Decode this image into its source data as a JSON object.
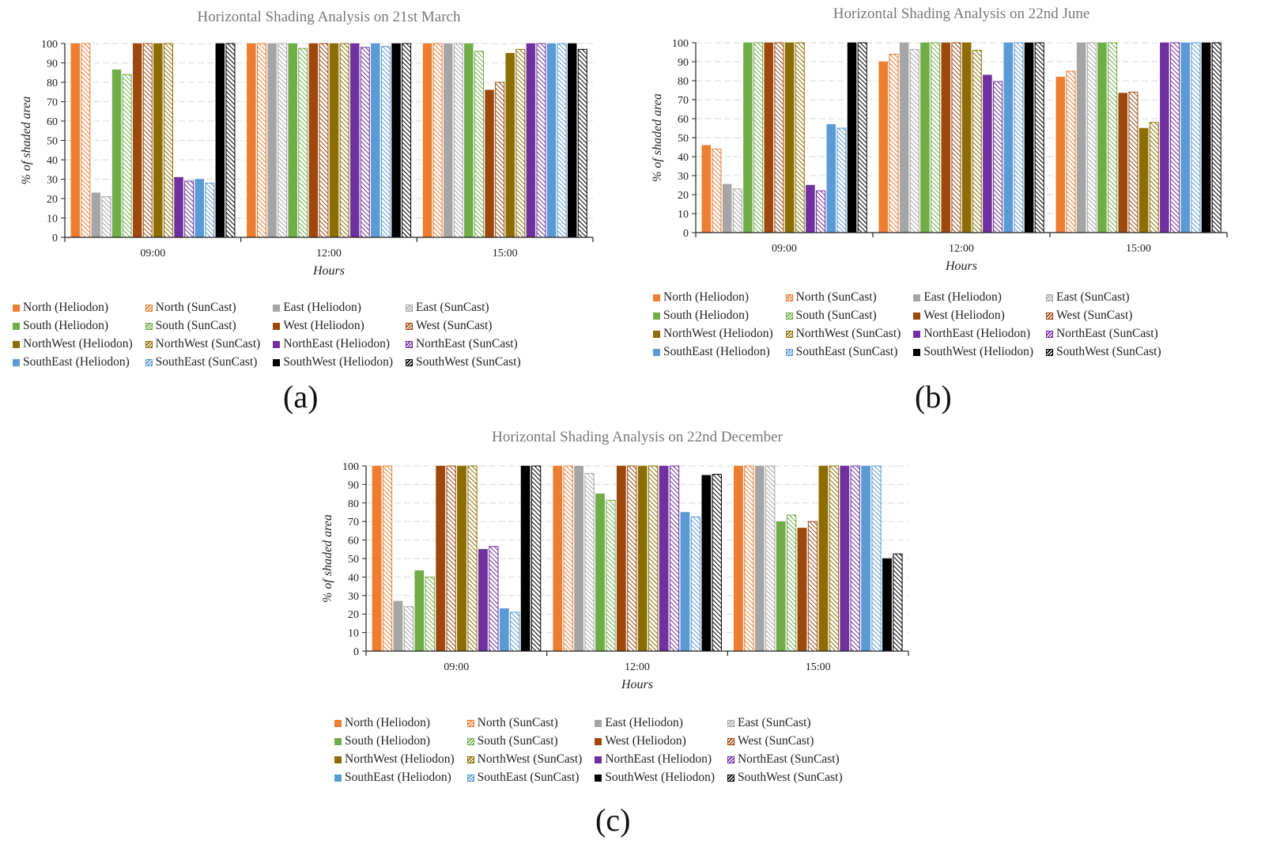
{
  "series_styles": [
    {
      "name": "North (Heliodon)",
      "color": "#ED7D31",
      "hatched": false
    },
    {
      "name": "North (SunCast)",
      "color": "#ED7D31",
      "hatched": true
    },
    {
      "name": "East (Heliodon)",
      "color": "#A5A5A5",
      "hatched": false
    },
    {
      "name": "East (SunCast)",
      "color": "#A5A5A5",
      "hatched": true
    },
    {
      "name": "South (Heliodon)",
      "color": "#70AD47",
      "hatched": false
    },
    {
      "name": "South (SunCast)",
      "color": "#70AD47",
      "hatched": true
    },
    {
      "name": "West (Heliodon)",
      "color": "#9E480E",
      "hatched": false
    },
    {
      "name": "West (SunCast)",
      "color": "#9E480E",
      "hatched": true
    },
    {
      "name": "NorthWest (Heliodon)",
      "color": "#8C6D00",
      "hatched": false
    },
    {
      "name": "NorthWest (SunCast)",
      "color": "#8C6D00",
      "hatched": true
    },
    {
      "name": "NorthEast (Heliodon)",
      "color": "#7030A0",
      "hatched": false
    },
    {
      "name": "NorthEast (SunCast)",
      "color": "#7030A0",
      "hatched": true
    },
    {
      "name": "SouthEast (Heliodon)",
      "color": "#5B9BD5",
      "hatched": false
    },
    {
      "name": "SouthEast (SunCast)",
      "color": "#5B9BD5",
      "hatched": true
    },
    {
      "name": "SouthWest (Heliodon)",
      "color": "#000000",
      "hatched": false
    },
    {
      "name": "SouthWest (SunCast)",
      "color": "#000000",
      "hatched": true
    }
  ],
  "chart_data": [
    {
      "type": "bar",
      "panel_label": "(a)",
      "title": "Horizontal Shading Analysis on 21st March",
      "xlabel": "Hours",
      "ylabel": "% of shaded area",
      "ylim": [
        0,
        100
      ],
      "yticks": [
        0,
        10,
        20,
        30,
        40,
        50,
        60,
        70,
        80,
        90,
        100
      ],
      "grid": true,
      "legend_position": "bottom",
      "categories": [
        "09:00",
        "12:00",
        "15:00"
      ],
      "series": [
        {
          "name": "North (Heliodon)",
          "values": [
            100,
            100,
            100
          ]
        },
        {
          "name": "North (SunCast)",
          "values": [
            100,
            100,
            100
          ]
        },
        {
          "name": "East (Heliodon)",
          "values": [
            23,
            100,
            100
          ]
        },
        {
          "name": "East (SunCast)",
          "values": [
            21,
            100,
            100
          ]
        },
        {
          "name": "South (Heliodon)",
          "values": [
            86.5,
            100,
            100
          ]
        },
        {
          "name": "South (SunCast)",
          "values": [
            84,
            97.5,
            96
          ]
        },
        {
          "name": "West (Heliodon)",
          "values": [
            100,
            100,
            76
          ]
        },
        {
          "name": "West (SunCast)",
          "values": [
            100,
            100,
            80
          ]
        },
        {
          "name": "NorthWest (Heliodon)",
          "values": [
            100,
            100,
            95
          ]
        },
        {
          "name": "NorthWest (SunCast)",
          "values": [
            100,
            100,
            97
          ]
        },
        {
          "name": "NorthEast (Heliodon)",
          "values": [
            31,
            100,
            100
          ]
        },
        {
          "name": "NorthEast (SunCast)",
          "values": [
            29,
            98,
            100
          ]
        },
        {
          "name": "SouthEast (Heliodon)",
          "values": [
            30,
            100,
            100
          ]
        },
        {
          "name": "SouthEast (SunCast)",
          "values": [
            28,
            98.5,
            100
          ]
        },
        {
          "name": "SouthWest (Heliodon)",
          "values": [
            100,
            100,
            100
          ]
        },
        {
          "name": "SouthWest (SunCast)",
          "values": [
            100,
            100,
            97
          ]
        }
      ]
    },
    {
      "type": "bar",
      "panel_label": "(b)",
      "title": "Horizontal Shading Analysis on 22nd June",
      "xlabel": "Hours",
      "ylabel": "% of shaded area",
      "ylim": [
        0,
        100
      ],
      "yticks": [
        0,
        10,
        20,
        30,
        40,
        50,
        60,
        70,
        80,
        90,
        100
      ],
      "grid": true,
      "legend_position": "bottom",
      "categories": [
        "09:00",
        "12:00",
        "15:00"
      ],
      "series": [
        {
          "name": "North (Heliodon)",
          "values": [
            46,
            90,
            82
          ]
        },
        {
          "name": "North (SunCast)",
          "values": [
            44,
            94,
            85
          ]
        },
        {
          "name": "East (Heliodon)",
          "values": [
            25.5,
            100,
            100
          ]
        },
        {
          "name": "East (SunCast)",
          "values": [
            23,
            96.5,
            100
          ]
        },
        {
          "name": "South (Heliodon)",
          "values": [
            100,
            100,
            100
          ]
        },
        {
          "name": "South (SunCast)",
          "values": [
            100,
            100,
            100
          ]
        },
        {
          "name": "West (Heliodon)",
          "values": [
            100,
            100,
            73.5
          ]
        },
        {
          "name": "West (SunCast)",
          "values": [
            100,
            100,
            74
          ]
        },
        {
          "name": "NorthWest (Heliodon)",
          "values": [
            100,
            100,
            55
          ]
        },
        {
          "name": "NorthWest (SunCast)",
          "values": [
            100,
            96,
            58
          ]
        },
        {
          "name": "NorthEast (Heliodon)",
          "values": [
            25,
            83,
            100
          ]
        },
        {
          "name": "NorthEast (SunCast)",
          "values": [
            22,
            79.5,
            100
          ]
        },
        {
          "name": "SouthEast (Heliodon)",
          "values": [
            57,
            100,
            100
          ]
        },
        {
          "name": "SouthEast (SunCast)",
          "values": [
            55,
            100,
            100
          ]
        },
        {
          "name": "SouthWest (Heliodon)",
          "values": [
            100,
            100,
            100
          ]
        },
        {
          "name": "SouthWest (SunCast)",
          "values": [
            100,
            100,
            100
          ]
        }
      ]
    },
    {
      "type": "bar",
      "panel_label": "(c)",
      "title": "Horizontal Shading Analysis on 22nd December",
      "xlabel": "Hours",
      "ylabel": "% of shaded area",
      "ylim": [
        0,
        100
      ],
      "yticks": [
        0,
        10,
        20,
        30,
        40,
        50,
        60,
        70,
        80,
        90,
        100
      ],
      "grid": true,
      "legend_position": "bottom",
      "categories": [
        "09:00",
        "12:00",
        "15:00"
      ],
      "series": [
        {
          "name": "North (Heliodon)",
          "values": [
            100,
            100,
            100
          ]
        },
        {
          "name": "North (SunCast)",
          "values": [
            100,
            100,
            100
          ]
        },
        {
          "name": "East (Heliodon)",
          "values": [
            27,
            100,
            100
          ]
        },
        {
          "name": "East (SunCast)",
          "values": [
            24,
            96,
            100
          ]
        },
        {
          "name": "South (Heliodon)",
          "values": [
            43.5,
            85,
            70
          ]
        },
        {
          "name": "South (SunCast)",
          "values": [
            40,
            81.5,
            73.5
          ]
        },
        {
          "name": "West (Heliodon)",
          "values": [
            100,
            100,
            66.5
          ]
        },
        {
          "name": "West (SunCast)",
          "values": [
            100,
            100,
            70
          ]
        },
        {
          "name": "NorthWest (Heliodon)",
          "values": [
            100,
            100,
            100
          ]
        },
        {
          "name": "NorthWest (SunCast)",
          "values": [
            100,
            100,
            100
          ]
        },
        {
          "name": "NorthEast (Heliodon)",
          "values": [
            55,
            100,
            100
          ]
        },
        {
          "name": "NorthEast (SunCast)",
          "values": [
            56.5,
            100,
            100
          ]
        },
        {
          "name": "SouthEast (Heliodon)",
          "values": [
            23,
            75,
            100
          ]
        },
        {
          "name": "SouthEast (SunCast)",
          "values": [
            21,
            72.5,
            100
          ]
        },
        {
          "name": "SouthWest (Heliodon)",
          "values": [
            100,
            95,
            50
          ]
        },
        {
          "name": "SouthWest (SunCast)",
          "values": [
            100,
            95.5,
            52.5
          ]
        }
      ]
    }
  ]
}
